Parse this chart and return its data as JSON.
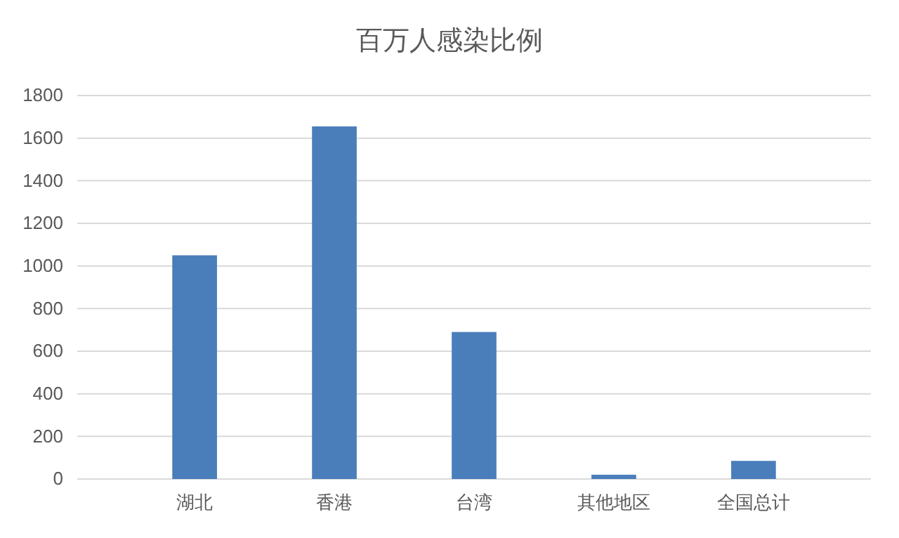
{
  "chart_data": {
    "type": "bar",
    "title": "百万人感染比例",
    "categories": [
      "湖北",
      "香港",
      "台湾",
      "其他地区",
      "全国总计"
    ],
    "values": [
      1050,
      1655,
      690,
      20,
      85
    ],
    "color": "#4a7ebb",
    "ylim": [
      0,
      1800
    ],
    "yticks": [
      0,
      200,
      400,
      600,
      800,
      1000,
      1200,
      1400,
      1600,
      1800
    ],
    "grid": "y"
  }
}
